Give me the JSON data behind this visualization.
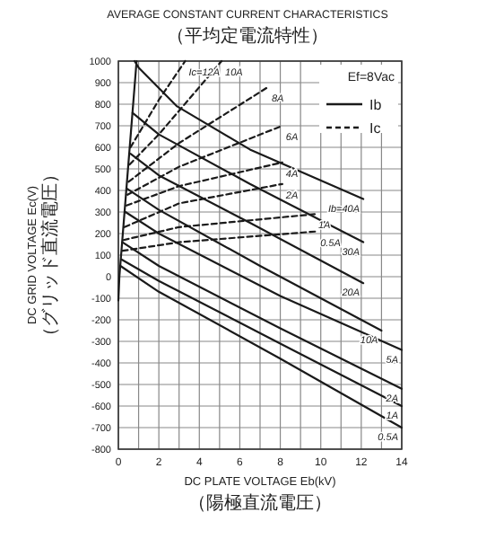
{
  "chart_data": {
    "type": "line",
    "title": "AVERAGE CONSTANT CURRENT CHARACTERISTICS",
    "subtitle": "（平均定電流特性）",
    "xlabel": "DC PLATE VOLTAGE Eb(kV)\n（陽極直流電圧）",
    "ylabel": "DC GRID VOLTAGE Ec(V)\n（グリッド直流電圧）",
    "xlim": [
      0,
      14
    ],
    "ylim": [
      -800,
      1000
    ],
    "xticks": [
      0,
      {
        "value": 1,
        "label": null
      },
      2,
      {
        "value": 3,
        "label": null
      },
      4,
      {
        "value": 5,
        "label": null
      },
      6,
      {
        "value": 7,
        "label": null
      },
      8,
      {
        "value": 9,
        "label": null
      },
      10,
      {
        "value": 11,
        "label": null
      },
      12,
      {
        "value": 13,
        "label": null
      },
      14
    ],
    "yticks": [
      -800,
      -700,
      -600,
      -500,
      -400,
      -300,
      -200,
      -100,
      0,
      100,
      200,
      300,
      400,
      500,
      600,
      700,
      800,
      900,
      1000
    ],
    "grid": true,
    "legend": "top right",
    "marker": "none",
    "series": [
      {
        "color": "#1a1a1a",
        "line_style": "solid",
        "x": [
          0,
          0.05,
          0.9
        ],
        "values": [
          -110,
          0,
          1000
        ]
      },
      {
        "name": "Ib",
        "color": "#1a1a1a",
        "line_style": "solid",
        "x": [
          0.8,
          1.0,
          2.9,
          6.5,
          12.1
        ],
        "values": [
          1000,
          970,
          790,
          590,
          360
        ]
      },
      {
        "color": "#1a1a1a",
        "line_style": "solid",
        "x": [
          0.7,
          2,
          6.5,
          12.1
        ],
        "values": [
          760,
          660,
          430,
          160
        ]
      },
      {
        "color": "#1a1a1a",
        "line_style": "solid",
        "x": [
          0.6,
          2,
          6.5,
          12.1
        ],
        "values": [
          570,
          470,
          250,
          -30
        ]
      },
      {
        "color": "#1a1a1a",
        "line_style": "solid",
        "x": [
          0.4,
          2,
          7,
          13
        ],
        "values": [
          410,
          310,
          50,
          -250
        ]
      },
      {
        "color": "#1a1a1a",
        "line_style": "solid",
        "x": [
          0.35,
          2,
          8,
          14
        ],
        "values": [
          300,
          200,
          -90,
          -340
        ]
      },
      {
        "color": "#1a1a1a",
        "line_style": "solid",
        "x": [
          0.2,
          2,
          8,
          14
        ],
        "values": [
          160,
          50,
          -240,
          -520
        ]
      },
      {
        "color": "#1a1a1a",
        "line_style": "solid",
        "x": [
          0.15,
          2,
          8,
          14
        ],
        "values": [
          80,
          -20,
          -310,
          -600
        ]
      },
      {
        "color": "#1a1a1a",
        "line_style": "solid",
        "x": [
          0.1,
          2,
          8,
          14
        ],
        "values": [
          50,
          -70,
          -380,
          -700
        ]
      },
      {
        "name": "Ic",
        "color": "#1a1a1a",
        "line_style": "dashed",
        "x": [
          0.6,
          2.0,
          3.3
        ],
        "values": [
          600,
          820,
          1000
        ]
      },
      {
        "color": "#1a1a1a",
        "line_style": "dashed",
        "x": [
          0.55,
          2,
          5.1
        ],
        "values": [
          520,
          660,
          1000
        ]
      },
      {
        "color": "#1a1a1a",
        "line_style": "dashed",
        "x": [
          0.5,
          3,
          7.4
        ],
        "values": [
          440,
          620,
          880
        ]
      },
      {
        "color": "#1a1a1a",
        "line_style": "dashed",
        "x": [
          0.45,
          3,
          8.1
        ],
        "values": [
          380,
          510,
          700
        ]
      },
      {
        "color": "#1a1a1a",
        "line_style": "dashed",
        "x": [
          0.4,
          3,
          8.1
        ],
        "values": [
          330,
          420,
          530
        ]
      },
      {
        "color": "#1a1a1a",
        "line_style": "dashed",
        "x": [
          0.3,
          3,
          8.1
        ],
        "values": [
          230,
          340,
          430
        ]
      },
      {
        "color": "#1a1a1a",
        "line_style": "dashed",
        "x": [
          0.25,
          3,
          9.7
        ],
        "values": [
          170,
          230,
          290
        ]
      },
      {
        "color": "#1a1a1a",
        "line_style": "dashed",
        "x": [
          0.2,
          3,
          9.8
        ],
        "values": [
          120,
          160,
          210
        ]
      }
    ],
    "annotations": [
      "Ef=8Vac",
      {
        "text": "Ib=40A",
        "x": 12.1,
        "y": 360
      },
      {
        "text": "30A",
        "x": 12.1,
        "y": 160
      },
      {
        "text": "20A",
        "x": 12.1,
        "y": -30
      },
      {
        "text": "10A",
        "x": 13,
        "y": -250
      },
      {
        "text": "5A",
        "x": 14,
        "y": -340
      },
      {
        "text": "2A",
        "x": 14,
        "y": -520
      },
      {
        "text": "1A",
        "x": 14,
        "y": -600
      },
      {
        "text": "0.5A",
        "x": 14,
        "y": -700
      },
      {
        "text": "Ic=12A",
        "x": 3.3,
        "y": 1000
      },
      {
        "text": "10A",
        "x": 5.1,
        "y": 1000
      },
      {
        "text": "8A",
        "x": 7.4,
        "y": 880
      },
      {
        "text": "6A",
        "x": 8.1,
        "y": 700
      },
      {
        "text": "4A",
        "x": 8.1,
        "y": 530
      },
      {
        "text": "2A",
        "x": 8.1,
        "y": 430
      },
      {
        "text": "1A",
        "x": 9.7,
        "y": 290
      },
      {
        "text": "0.5A",
        "x": 9.8,
        "y": 210
      }
    ]
  }
}
